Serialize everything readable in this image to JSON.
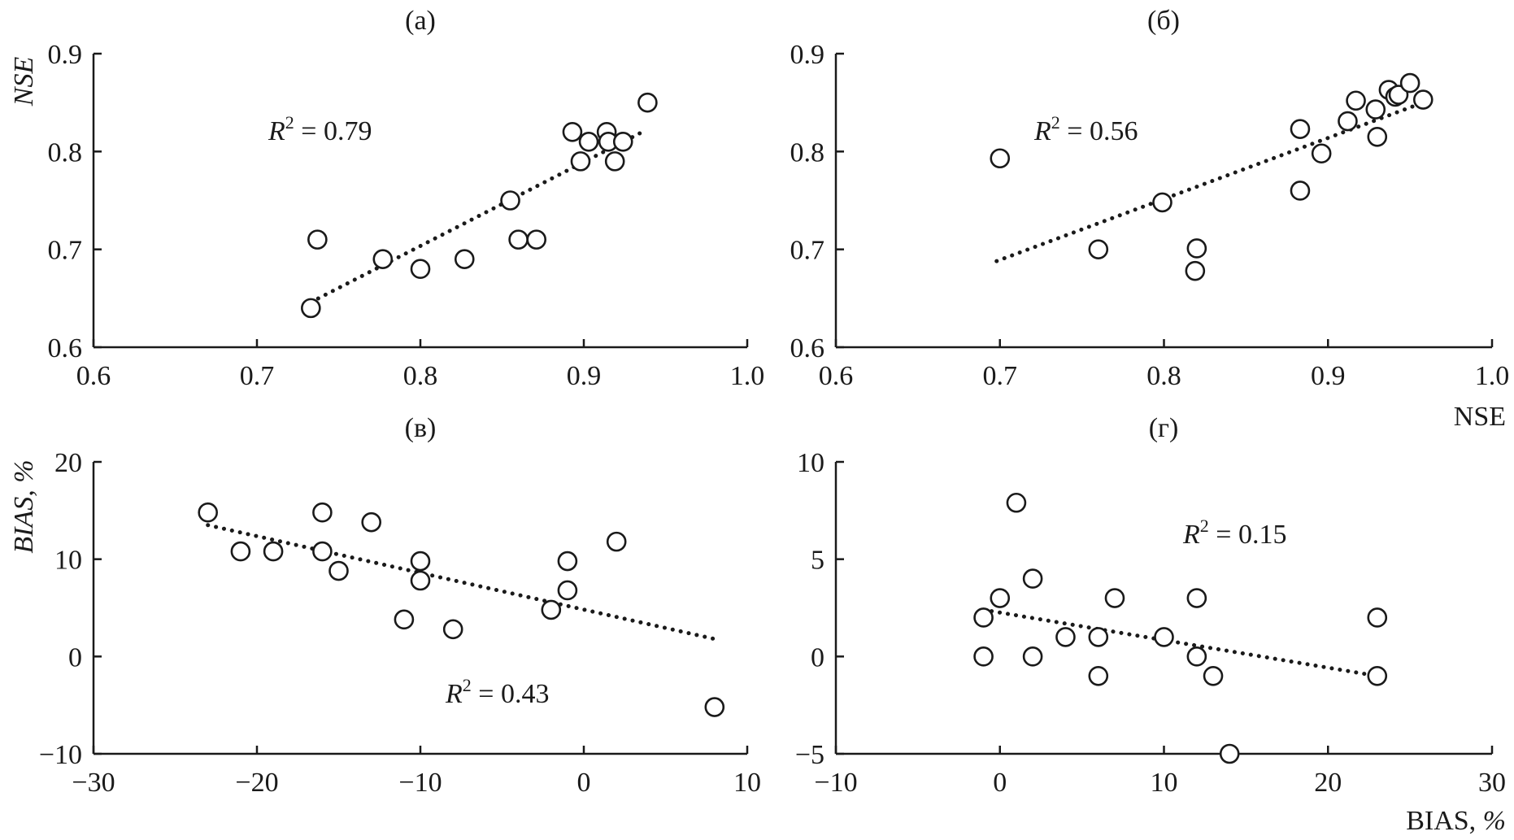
{
  "chart_data": [
    {
      "type": "scatter",
      "panel_label": "(а)",
      "xlabel": "",
      "ylabel": "NSE",
      "xlim": [
        0.6,
        1.0
      ],
      "ylim": [
        0.6,
        0.9
      ],
      "xticks": [
        "0.6",
        "0.7",
        "0.8",
        "0.9",
        "1.0"
      ],
      "yticks": [
        "0.6",
        "0.7",
        "0.8",
        "0.9"
      ],
      "annotation": {
        "base": "R",
        "sup": "2",
        "text": " = 0.79"
      },
      "trendline": {
        "x": [
          0.733,
          0.937
        ],
        "y": [
          0.646,
          0.821
        ]
      },
      "points": [
        {
          "x": 0.733,
          "y": 0.64
        },
        {
          "x": 0.737,
          "y": 0.71
        },
        {
          "x": 0.777,
          "y": 0.69
        },
        {
          "x": 0.8,
          "y": 0.68
        },
        {
          "x": 0.827,
          "y": 0.69
        },
        {
          "x": 0.855,
          "y": 0.75
        },
        {
          "x": 0.86,
          "y": 0.71
        },
        {
          "x": 0.871,
          "y": 0.71
        },
        {
          "x": 0.893,
          "y": 0.82
        },
        {
          "x": 0.898,
          "y": 0.79
        },
        {
          "x": 0.903,
          "y": 0.81
        },
        {
          "x": 0.914,
          "y": 0.82
        },
        {
          "x": 0.915,
          "y": 0.81
        },
        {
          "x": 0.919,
          "y": 0.79
        },
        {
          "x": 0.924,
          "y": 0.81
        },
        {
          "x": 0.939,
          "y": 0.85
        }
      ]
    },
    {
      "type": "scatter",
      "panel_label": "(б)",
      "xlabel": "NSE",
      "ylabel": "",
      "xlim": [
        0.6,
        1.0
      ],
      "ylim": [
        0.6,
        0.9
      ],
      "xticks": [
        "0.6",
        "0.7",
        "0.8",
        "0.9",
        "1.0"
      ],
      "yticks": [
        "0.6",
        "0.7",
        "0.8",
        "0.9"
      ],
      "annotation": {
        "base": "R",
        "sup": "2",
        "text": " = 0.56"
      },
      "trendline": {
        "x": [
          0.698,
          0.958
        ],
        "y": [
          0.688,
          0.85
        ]
      },
      "points": [
        {
          "x": 0.7,
          "y": 0.793
        },
        {
          "x": 0.76,
          "y": 0.7
        },
        {
          "x": 0.799,
          "y": 0.748
        },
        {
          "x": 0.82,
          "y": 0.701
        },
        {
          "x": 0.819,
          "y": 0.678
        },
        {
          "x": 0.883,
          "y": 0.823
        },
        {
          "x": 0.883,
          "y": 0.76
        },
        {
          "x": 0.896,
          "y": 0.798
        },
        {
          "x": 0.912,
          "y": 0.831
        },
        {
          "x": 0.917,
          "y": 0.852
        },
        {
          "x": 0.929,
          "y": 0.843
        },
        {
          "x": 0.93,
          "y": 0.815
        },
        {
          "x": 0.937,
          "y": 0.863
        },
        {
          "x": 0.941,
          "y": 0.856
        },
        {
          "x": 0.943,
          "y": 0.858
        },
        {
          "x": 0.95,
          "y": 0.87
        },
        {
          "x": 0.958,
          "y": 0.853
        }
      ]
    },
    {
      "type": "scatter",
      "panel_label": "(в)",
      "xlabel": "",
      "ylabel": "BIAS, %",
      "xlim": [
        -30,
        10
      ],
      "ylim": [
        -10,
        20
      ],
      "xticks": [
        "−30",
        "−20",
        "−10",
        "0",
        "10"
      ],
      "yticks": [
        "−10",
        "0",
        "10",
        "20"
      ],
      "annotation": {
        "base": "R",
        "sup": "2",
        "text": " = 0.43"
      },
      "trendline": {
        "x": [
          -23,
          8
        ],
        "y": [
          13.5,
          1.8
        ]
      },
      "points": [
        {
          "x": -23,
          "y": 14.8
        },
        {
          "x": -21,
          "y": 10.8
        },
        {
          "x": -19,
          "y": 10.8
        },
        {
          "x": -16,
          "y": 14.8
        },
        {
          "x": -16,
          "y": 10.8
        },
        {
          "x": -15,
          "y": 8.8
        },
        {
          "x": -13,
          "y": 13.8
        },
        {
          "x": -11,
          "y": 3.8
        },
        {
          "x": -10,
          "y": 9.8
        },
        {
          "x": -10,
          "y": 7.8
        },
        {
          "x": -8,
          "y": 2.8
        },
        {
          "x": -2,
          "y": 4.8
        },
        {
          "x": -1,
          "y": 9.8
        },
        {
          "x": -1,
          "y": 6.8
        },
        {
          "x": 2,
          "y": 11.8
        },
        {
          "x": 8,
          "y": -5.2
        }
      ]
    },
    {
      "type": "scatter",
      "panel_label": "(г)",
      "xlabel": "BIAS, %",
      "ylabel": "",
      "xlim": [
        -10,
        30
      ],
      "ylim": [
        -5,
        10
      ],
      "xticks": [
        "−10",
        "0",
        "10",
        "20",
        "30"
      ],
      "yticks": [
        "−5",
        "0",
        "5",
        "10"
      ],
      "annotation": {
        "base": "R",
        "sup": "2",
        "text": " = 0.15"
      },
      "trendline": {
        "x": [
          -1,
          23
        ],
        "y": [
          2.4,
          -1.0
        ]
      },
      "points": [
        {
          "x": -1,
          "y": 2
        },
        {
          "x": -1,
          "y": 0
        },
        {
          "x": 0,
          "y": 3
        },
        {
          "x": 1,
          "y": 7.9
        },
        {
          "x": 2,
          "y": 4
        },
        {
          "x": 2,
          "y": 0
        },
        {
          "x": 4,
          "y": 1
        },
        {
          "x": 6,
          "y": 1
        },
        {
          "x": 6,
          "y": -1
        },
        {
          "x": 7,
          "y": 3
        },
        {
          "x": 10,
          "y": 1
        },
        {
          "x": 12,
          "y": 3
        },
        {
          "x": 12,
          "y": 0
        },
        {
          "x": 13,
          "y": -1
        },
        {
          "x": 14,
          "y": -5
        },
        {
          "x": 23,
          "y": 2
        },
        {
          "x": 23,
          "y": -1
        }
      ]
    }
  ]
}
